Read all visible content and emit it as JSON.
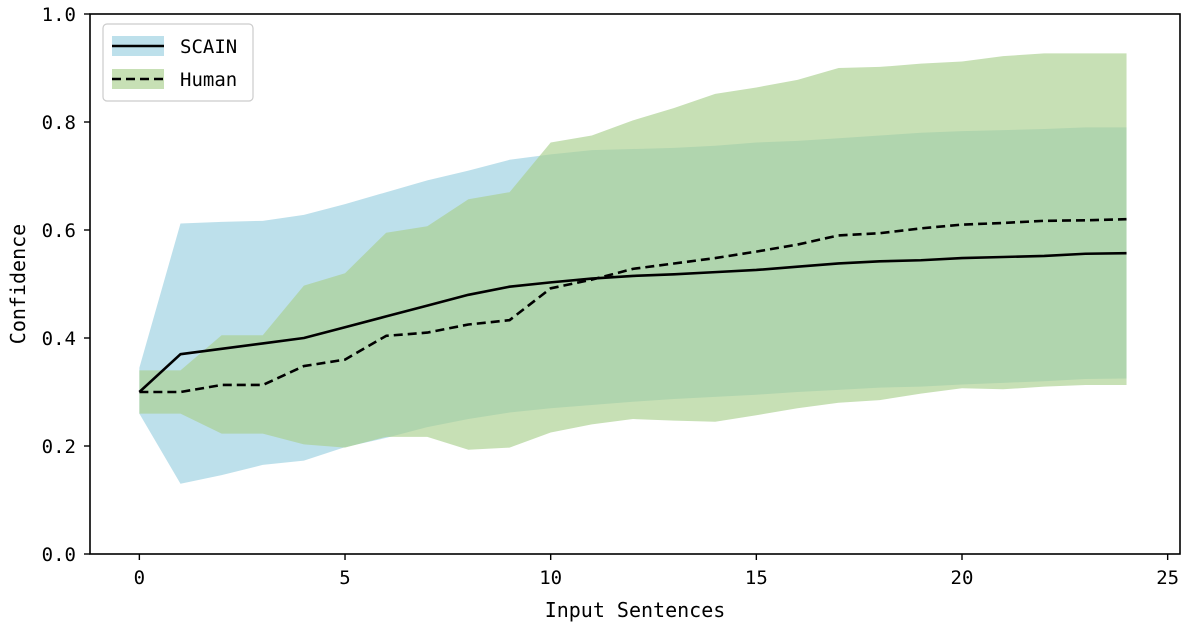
{
  "chart_data": {
    "type": "line",
    "xlabel": "Input Sentences",
    "ylabel": "Confidence",
    "xlim": [
      -1.2,
      25.3
    ],
    "ylim": [
      0.0,
      1.0
    ],
    "xticks": [
      0,
      5,
      10,
      15,
      20,
      25
    ],
    "xtick_labels": [
      "0",
      "5",
      "10",
      "15",
      "20",
      "25"
    ],
    "yticks": [
      0.0,
      0.2,
      0.4,
      0.6,
      0.8,
      1.0
    ],
    "ytick_labels": [
      "0.0",
      "0.2",
      "0.4",
      "0.6",
      "0.8",
      "1.0"
    ],
    "grid": false,
    "legend_position": "top-left",
    "series": [
      {
        "name": "SCAIN",
        "line_style": "solid",
        "line_color": "#000000",
        "band_color": "#add8e6",
        "x": [
          0,
          1,
          2,
          3,
          4,
          5,
          6,
          7,
          8,
          9,
          10,
          11,
          12,
          13,
          14,
          15,
          16,
          17,
          18,
          19,
          20,
          21,
          22,
          23,
          24
        ],
        "mean": [
          0.3,
          0.37,
          0.38,
          0.39,
          0.4,
          0.42,
          0.44,
          0.46,
          0.48,
          0.495,
          0.503,
          0.51,
          0.515,
          0.518,
          0.522,
          0.526,
          0.532,
          0.538,
          0.542,
          0.544,
          0.548,
          0.55,
          0.552,
          0.556,
          0.557
        ],
        "upper": [
          0.345,
          0.612,
          0.615,
          0.617,
          0.628,
          0.648,
          0.67,
          0.692,
          0.71,
          0.73,
          0.74,
          0.748,
          0.75,
          0.752,
          0.756,
          0.762,
          0.765,
          0.77,
          0.775,
          0.78,
          0.783,
          0.785,
          0.787,
          0.79,
          0.79
        ],
        "lower": [
          0.26,
          0.13,
          0.146,
          0.165,
          0.173,
          0.198,
          0.215,
          0.235,
          0.25,
          0.262,
          0.27,
          0.276,
          0.282,
          0.287,
          0.291,
          0.295,
          0.3,
          0.304,
          0.308,
          0.31,
          0.314,
          0.317,
          0.32,
          0.324,
          0.325
        ]
      },
      {
        "name": "Human",
        "line_style": "dashed",
        "line_color": "#000000",
        "band_color": "#a9d08e",
        "x": [
          0,
          1,
          2,
          3,
          4,
          5,
          6,
          7,
          8,
          9,
          10,
          11,
          12,
          13,
          14,
          15,
          16,
          17,
          18,
          19,
          20,
          21,
          22,
          23,
          24
        ],
        "mean": [
          0.3,
          0.3,
          0.313,
          0.313,
          0.348,
          0.36,
          0.404,
          0.41,
          0.425,
          0.433,
          0.492,
          0.508,
          0.528,
          0.538,
          0.548,
          0.56,
          0.573,
          0.59,
          0.594,
          0.603,
          0.61,
          0.613,
          0.617,
          0.618,
          0.62
        ],
        "upper": [
          0.34,
          0.34,
          0.405,
          0.405,
          0.497,
          0.52,
          0.595,
          0.607,
          0.657,
          0.67,
          0.762,
          0.775,
          0.803,
          0.826,
          0.852,
          0.864,
          0.878,
          0.9,
          0.902,
          0.908,
          0.912,
          0.922,
          0.927,
          0.927,
          0.927
        ],
        "lower": [
          0.26,
          0.26,
          0.223,
          0.223,
          0.203,
          0.197,
          0.217,
          0.217,
          0.193,
          0.197,
          0.225,
          0.24,
          0.25,
          0.247,
          0.245,
          0.257,
          0.27,
          0.28,
          0.285,
          0.297,
          0.307,
          0.305,
          0.31,
          0.313,
          0.313
        ]
      }
    ]
  }
}
